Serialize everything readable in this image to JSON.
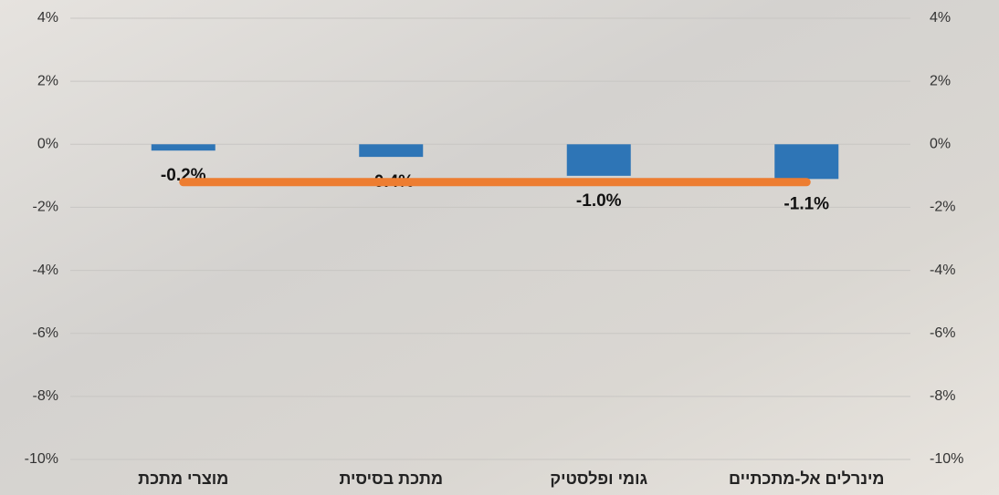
{
  "chart_data": {
    "type": "bar",
    "categories": [
      "מוצרי מתכת",
      "מתכת בסיסית",
      "גומי ופלסטיק",
      "מינרלים אל-מתכתיים"
    ],
    "series": [
      {
        "color": "#2e75b6",
        "values": [
          -0.2,
          -0.4,
          -1.0,
          -1.1
        ],
        "value_labels": [
          "-0.2%",
          "-0.4%",
          "-1.0%",
          "-1.1%"
        ]
      },
      {
        "type": "line",
        "axis": "y2",
        "color": "#ed7d31",
        "values": [
          -1.2,
          -1.2,
          -1.2,
          -1.2
        ]
      }
    ],
    "ylim": [
      -10,
      4
    ],
    "yticks": [
      {
        "value": -10,
        "label": "-10%"
      },
      {
        "value": -8,
        "label": "-8%"
      },
      {
        "value": -6,
        "label": "-6%"
      },
      {
        "value": -4,
        "label": "-4%"
      },
      {
        "value": -2,
        "label": "-2%"
      },
      {
        "value": 0,
        "label": "0%"
      },
      {
        "value": 2,
        "label": "2%"
      },
      {
        "value": 4,
        "label": "4%"
      }
    ],
    "y2lim": [
      -10,
      4
    ],
    "y2ticks": [
      {
        "value": -10,
        "label": "-10%"
      },
      {
        "value": -8,
        "label": "-8%"
      },
      {
        "value": -6,
        "label": "-6%"
      },
      {
        "value": -4,
        "label": "-4%"
      },
      {
        "value": -2,
        "label": "-2%"
      },
      {
        "value": 0,
        "label": "0%"
      },
      {
        "value": 2,
        "label": "2%"
      },
      {
        "value": 4,
        "label": "4%"
      }
    ],
    "grid": true
  }
}
